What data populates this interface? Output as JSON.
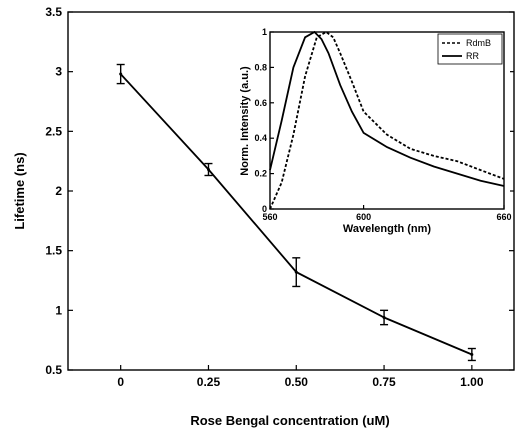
{
  "chart_data": [
    {
      "type": "line",
      "xlabel": "Rose Bengal concentration (uM)",
      "ylabel": "Lifetime (ns)",
      "x_ticks": [
        "0",
        "0.25",
        "0.50",
        "0.75",
        "1.00"
      ],
      "y_ticks": [
        "0.5",
        "1",
        "1.5",
        "2",
        "2.5",
        "3",
        "3.5"
      ],
      "xlim": [
        -0.15,
        1.12
      ],
      "ylim": [
        0.5,
        3.5
      ],
      "grid": false,
      "series": [
        {
          "x": [
            0,
            0.25,
            0.5,
            0.75,
            1.0
          ],
          "y": [
            2.98,
            2.18,
            1.32,
            0.94,
            0.63
          ],
          "yerr": [
            0.08,
            0.05,
            0.12,
            0.06,
            0.05
          ]
        }
      ]
    },
    {
      "type": "line",
      "inset": true,
      "xlabel": "Wavelength (nm)",
      "ylabel": "Norm. Intensity (a.u.)",
      "x_ticks": [
        "560",
        "600",
        "660"
      ],
      "y_ticks": [
        "0",
        "0.2",
        "0.4",
        "0.6",
        "0.8",
        "1"
      ],
      "xlim": [
        560,
        660
      ],
      "ylim": [
        0,
        1
      ],
      "legend_position": "top-right",
      "series": [
        {
          "name": "RdmB",
          "style": "dashed",
          "x": [
            560,
            565,
            570,
            575,
            580,
            584,
            587,
            590,
            595,
            600,
            610,
            620,
            630,
            640,
            650,
            660
          ],
          "y": [
            0.0,
            0.15,
            0.42,
            0.75,
            0.97,
            1.0,
            0.97,
            0.88,
            0.72,
            0.55,
            0.42,
            0.34,
            0.3,
            0.27,
            0.22,
            0.17
          ]
        },
        {
          "name": "RR",
          "style": "solid",
          "x": [
            560,
            565,
            570,
            575,
            579,
            582,
            585,
            590,
            595,
            600,
            610,
            620,
            630,
            640,
            650,
            660
          ],
          "y": [
            0.22,
            0.5,
            0.8,
            0.97,
            1.0,
            0.96,
            0.88,
            0.7,
            0.55,
            0.43,
            0.35,
            0.29,
            0.24,
            0.2,
            0.16,
            0.13
          ]
        }
      ]
    }
  ]
}
